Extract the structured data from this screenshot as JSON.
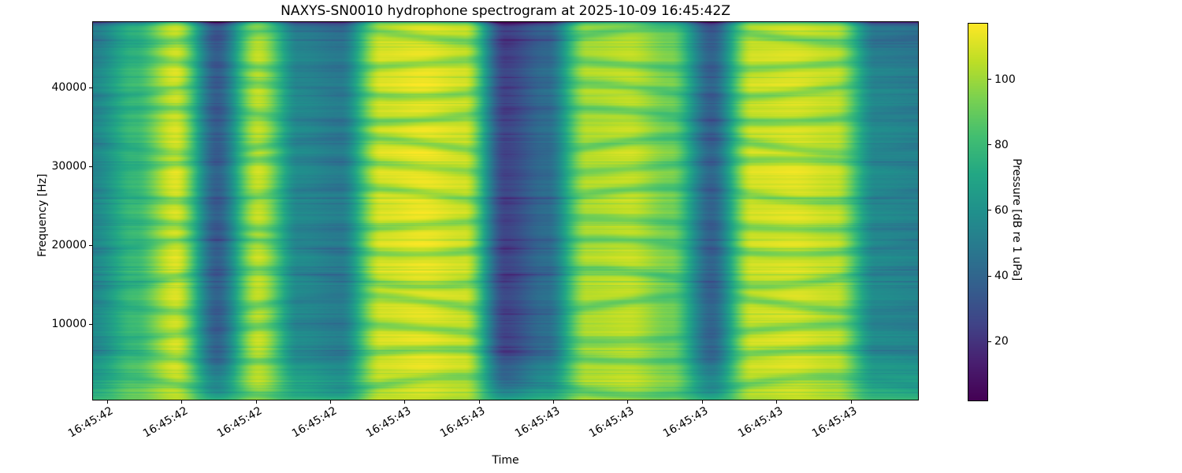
{
  "figure": {
    "background": "#ffffff"
  },
  "chart_data": {
    "type": "heatmap",
    "subtype": "spectrogram",
    "title": "NAXYS-SN0010 hydrophone spectrogram at 2025-10-09 16:45:42Z",
    "xlabel": "Time",
    "ylabel": "Frequency [Hz]",
    "colormap": "viridis",
    "grid": false,
    "x_tick_labels": [
      "16:45:42",
      "16:45:42",
      "16:45:42",
      "16:45:42",
      "16:45:43",
      "16:45:43",
      "16:45:43",
      "16:45:43",
      "16:45:43",
      "16:45:43",
      "16:45:43"
    ],
    "y_ticks_hz": [
      10000,
      20000,
      30000,
      40000
    ],
    "y_range_hz": [
      400,
      48300
    ],
    "colorbar": {
      "label": "Pressure [dB re 1 uPa]",
      "ticks": [
        20,
        40,
        60,
        80,
        100
      ],
      "vmin": 2,
      "vmax": 117,
      "position": "right"
    },
    "levels_db": {
      "rows": 9,
      "cols": 21,
      "row_freqs_hz": [
        48000,
        42000,
        36000,
        30000,
        24000,
        18000,
        12000,
        6000,
        400
      ],
      "values": [
        [
          52,
          76,
          108,
          36,
          104,
          52,
          46,
          110,
          113,
          108,
          26,
          40,
          102,
          106,
          92,
          38,
          108,
          110,
          105,
          48,
          46
        ],
        [
          56,
          80,
          112,
          38,
          108,
          56,
          50,
          112,
          115,
          110,
          27,
          44,
          105,
          108,
          96,
          40,
          110,
          112,
          108,
          55,
          52
        ],
        [
          58,
          82,
          110,
          38,
          106,
          58,
          52,
          110,
          114,
          110,
          28,
          45,
          104,
          107,
          93,
          40,
          109,
          111,
          107,
          57,
          54
        ],
        [
          56,
          79,
          113,
          39,
          108,
          57,
          50,
          112,
          115,
          111,
          28,
          44,
          106,
          109,
          96,
          41,
          111,
          113,
          108,
          58,
          55
        ],
        [
          58,
          82,
          111,
          38,
          107,
          56,
          52,
          111,
          115,
          110,
          28,
          45,
          105,
          108,
          94,
          40,
          110,
          112,
          107,
          57,
          54
        ],
        [
          57,
          80,
          112,
          38,
          108,
          58,
          51,
          112,
          115,
          110,
          27,
          44,
          105,
          108,
          96,
          40,
          110,
          112,
          108,
          58,
          55
        ],
        [
          58,
          82,
          110,
          39,
          106,
          57,
          52,
          110,
          113,
          109,
          28,
          45,
          104,
          107,
          93,
          41,
          109,
          111,
          106,
          57,
          54
        ],
        [
          59,
          82,
          112,
          40,
          108,
          58,
          52,
          111,
          114,
          110,
          29,
          46,
          105,
          108,
          95,
          42,
          110,
          112,
          107,
          58,
          56
        ],
        [
          78,
          95,
          108,
          68,
          104,
          78,
          70,
          108,
          112,
          107,
          58,
          72,
          104,
          107,
          98,
          68,
          107,
          110,
          104,
          78,
          76
        ]
      ]
    }
  }
}
